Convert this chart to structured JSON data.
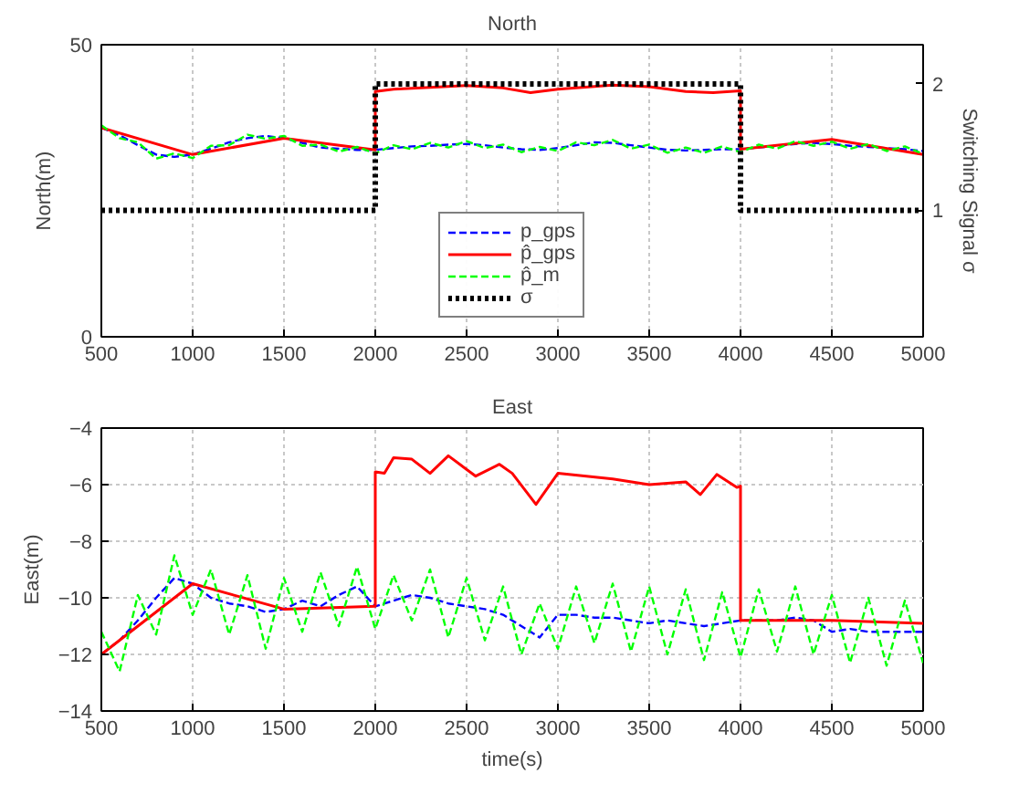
{
  "chart_data": [
    {
      "type": "line",
      "title": "North",
      "ylabel": "North(m)",
      "y2label": "Switching Signal σ",
      "xlim": [
        500,
        5000
      ],
      "xticks": [
        500,
        1000,
        1500,
        2000,
        2500,
        3000,
        3500,
        4000,
        4500,
        5000
      ],
      "ylim": [
        0,
        50
      ],
      "yticks": [
        0,
        50
      ],
      "y2lim": [
        0,
        2.31
      ],
      "y2ticks": [
        1,
        2
      ],
      "grid": true,
      "legend": "bottom",
      "series": [
        {
          "name": "p_gps",
          "color": "#0000ff",
          "line_style": "dashed",
          "x": [
            500,
            600,
            700,
            800,
            900,
            1000,
            1100,
            1200,
            1300,
            1400,
            1500,
            1600,
            1700,
            1800,
            1900,
            2000,
            2100,
            2200,
            2300,
            2400,
            2500,
            2600,
            2700,
            2800,
            2900,
            3000,
            3100,
            3200,
            3300,
            3400,
            3500,
            3600,
            3700,
            3800,
            3900,
            4000,
            4100,
            4200,
            4300,
            4400,
            4500,
            4600,
            4700,
            4800,
            4900,
            5000
          ],
          "values": [
            35.8,
            34.5,
            32.8,
            31.2,
            30.8,
            31.2,
            32.2,
            33.3,
            34.0,
            34.4,
            34.0,
            33.2,
            32.4,
            32.2,
            32.0,
            32.0,
            32.3,
            32.6,
            32.7,
            32.9,
            33.0,
            32.8,
            32.4,
            32.1,
            32.0,
            32.3,
            32.8,
            33.3,
            33.2,
            32.8,
            32.4,
            32.0,
            31.9,
            32.0,
            32.1,
            32.1,
            32.4,
            32.7,
            33.0,
            33.2,
            33.0,
            32.7,
            32.5,
            32.3,
            32.1,
            31.8
          ]
        },
        {
          "name": "p̂_gps",
          "color": "#ff0000",
          "line_style": "solid",
          "x": [
            500,
            1000,
            1500,
            2000,
            2000,
            2100,
            2300,
            2500,
            2700,
            2850,
            3000,
            3300,
            3500,
            3700,
            3850,
            4000,
            4000,
            4500,
            5000
          ],
          "values": [
            35.8,
            31.2,
            34.0,
            32.0,
            42.0,
            42.4,
            42.7,
            43.0,
            42.6,
            41.8,
            42.4,
            43.1,
            42.8,
            42.0,
            41.8,
            42.1,
            32.1,
            33.8,
            31.2
          ]
        },
        {
          "name": "p̂_m",
          "color": "#00ff00",
          "line_style": "dashed",
          "x": [
            500,
            600,
            700,
            800,
            900,
            1000,
            1100,
            1200,
            1300,
            1400,
            1500,
            1600,
            1700,
            1800,
            1900,
            2000,
            2100,
            2200,
            2300,
            2400,
            2500,
            2600,
            2700,
            2800,
            2900,
            3000,
            3100,
            3200,
            3300,
            3400,
            3500,
            3600,
            3700,
            3800,
            3900,
            4000,
            4100,
            4200,
            4300,
            4400,
            4500,
            4600,
            4700,
            4800,
            4900,
            5000
          ],
          "values": [
            36.2,
            34.0,
            33.3,
            30.5,
            31.4,
            30.6,
            32.7,
            32.8,
            34.6,
            33.9,
            34.4,
            32.7,
            32.9,
            31.7,
            32.5,
            31.4,
            32.8,
            32.1,
            33.2,
            32.4,
            33.5,
            32.3,
            32.9,
            31.6,
            32.5,
            31.8,
            33.3,
            32.8,
            33.7,
            32.2,
            32.9,
            31.5,
            32.4,
            31.5,
            32.6,
            31.6,
            32.9,
            32.2,
            33.5,
            32.7,
            33.4,
            32.2,
            33.0,
            31.8,
            32.6,
            31.3
          ]
        },
        {
          "name": "σ",
          "color": "#000000",
          "line_style": "dotted",
          "axis": "y2",
          "x": [
            500,
            2000,
            2000,
            4000,
            4000,
            5000
          ],
          "values": [
            1,
            1,
            2,
            2,
            1,
            1
          ]
        }
      ]
    },
    {
      "type": "line",
      "title": "East",
      "xlabel": "time(s)",
      "ylabel": "East(m)",
      "xlim": [
        500,
        5000
      ],
      "xticks": [
        500,
        1000,
        1500,
        2000,
        2500,
        3000,
        3500,
        4000,
        4500,
        5000
      ],
      "ylim": [
        -14,
        -4
      ],
      "yticks": [
        -14,
        -12,
        -10,
        -8,
        -6,
        -4
      ],
      "grid": true,
      "series": [
        {
          "color": "#0000ff",
          "line_style": "dashed",
          "x": [
            500,
            600,
            700,
            800,
            900,
            1000,
            1100,
            1200,
            1300,
            1400,
            1500,
            1600,
            1700,
            1800,
            1900,
            2000,
            2100,
            2200,
            2300,
            2400,
            2500,
            2600,
            2700,
            2800,
            2900,
            3000,
            3100,
            3200,
            3300,
            3400,
            3500,
            3600,
            3700,
            3800,
            3900,
            4000,
            4100,
            4200,
            4300,
            4400,
            4500,
            4600,
            4700,
            4800,
            4900,
            5000
          ],
          "values": [
            -12.0,
            -11.5,
            -10.8,
            -10.0,
            -9.3,
            -9.5,
            -10.0,
            -10.2,
            -10.3,
            -10.5,
            -10.4,
            -10.1,
            -10.3,
            -9.9,
            -9.6,
            -10.3,
            -10.1,
            -9.9,
            -10.0,
            -10.2,
            -10.3,
            -10.4,
            -10.6,
            -11.0,
            -11.4,
            -10.6,
            -10.6,
            -10.7,
            -10.7,
            -10.8,
            -10.9,
            -10.8,
            -10.9,
            -11.0,
            -10.9,
            -10.8,
            -10.8,
            -10.8,
            -10.7,
            -10.8,
            -11.2,
            -11.1,
            -11.2,
            -11.2,
            -11.2,
            -11.2
          ]
        },
        {
          "color": "#ff0000",
          "line_style": "solid",
          "x": [
            500,
            1000,
            1500,
            2000,
            2000,
            2050,
            2100,
            2200,
            2300,
            2400,
            2550,
            2680,
            2750,
            2880,
            3000,
            3300,
            3500,
            3700,
            3780,
            3870,
            3980,
            4000,
            4000,
            4500,
            5000
          ],
          "values": [
            -12.0,
            -9.5,
            -10.4,
            -10.3,
            -5.55,
            -5.6,
            -5.05,
            -5.1,
            -5.6,
            -4.98,
            -5.7,
            -5.28,
            -5.6,
            -6.7,
            -5.6,
            -5.8,
            -6.0,
            -5.9,
            -6.35,
            -5.64,
            -6.1,
            -6.05,
            -10.8,
            -10.8,
            -10.9
          ]
        },
        {
          "color": "#00ff00",
          "line_style": "dashed",
          "x": [
            500,
            600,
            700,
            800,
            900,
            1000,
            1100,
            1200,
            1300,
            1400,
            1500,
            1600,
            1700,
            1800,
            1900,
            2000,
            2100,
            2200,
            2300,
            2400,
            2500,
            2600,
            2700,
            2800,
            2900,
            3000,
            3100,
            3200,
            3300,
            3400,
            3500,
            3600,
            3700,
            3800,
            3900,
            4000,
            4100,
            4200,
            4300,
            4400,
            4500,
            4600,
            4700,
            4800,
            4900,
            5000
          ],
          "values": [
            -11.2,
            -12.6,
            -9.9,
            -11.3,
            -8.5,
            -10.6,
            -9.0,
            -11.3,
            -9.2,
            -11.8,
            -9.3,
            -11.2,
            -9.1,
            -11.0,
            -8.9,
            -11.1,
            -9.2,
            -10.8,
            -9.0,
            -11.4,
            -9.3,
            -11.5,
            -9.6,
            -12.0,
            -10.2,
            -11.8,
            -9.6,
            -11.6,
            -9.5,
            -11.9,
            -9.6,
            -12.0,
            -9.7,
            -12.2,
            -9.8,
            -12.1,
            -9.7,
            -11.9,
            -9.6,
            -12.0,
            -9.9,
            -12.3,
            -10.0,
            -12.4,
            -10.1,
            -12.3
          ]
        }
      ]
    }
  ]
}
